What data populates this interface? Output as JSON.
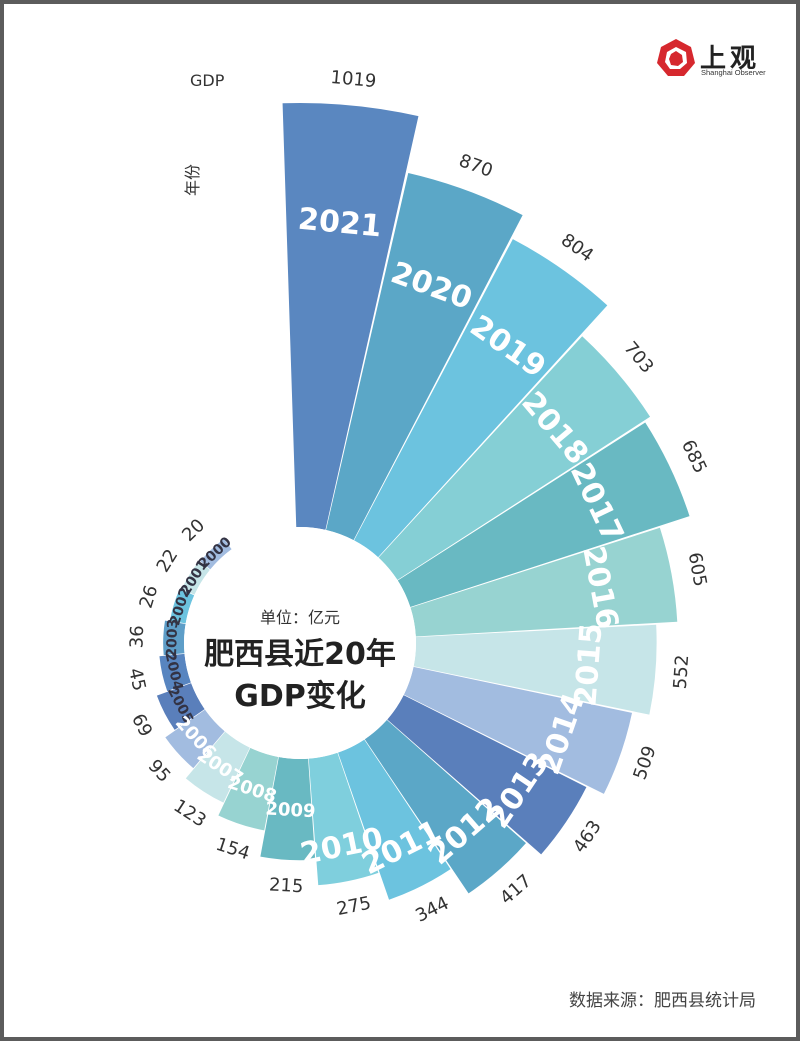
{
  "brand": {
    "name_cn": "上观",
    "name_en": "Shanghai Observer"
  },
  "center": {
    "unit": "单位：亿元",
    "title_line1": "肥西县近20年",
    "title_line2": "GDP变化"
  },
  "source": "数据来源：肥西县统计局",
  "chart_data": {
    "type": "bar",
    "layout": "radial",
    "title": "肥西县近20年GDP变化",
    "unit": "单位：亿元",
    "value_label": "GDP",
    "category_label": "年份",
    "categories": [
      "2000",
      "2001",
      "2002",
      "2003",
      "2004",
      "2005",
      "2006",
      "2007",
      "2008",
      "2009",
      "2010",
      "2011",
      "2012",
      "2013",
      "2014",
      "2015",
      "2016",
      "2017",
      "2018",
      "2019",
      "2020",
      "2021"
    ],
    "values": [
      20,
      22,
      26,
      36,
      45,
      69,
      95,
      123,
      154,
      215,
      275,
      344,
      417,
      463,
      509,
      552,
      605,
      685,
      703,
      804,
      870,
      1019
    ],
    "colors": [
      "#a2bce0",
      "#c6e5e8",
      "#6cc3df",
      "#5e9ec8",
      "#5885c0",
      "#5a7fbb",
      "#a2bce0",
      "#c6e5e8",
      "#97d3d1",
      "#69b9c2",
      "#7fcfdd",
      "#6cc3df",
      "#5ba7c7",
      "#5a7fbb",
      "#a2bce0",
      "#c6e5e8",
      "#97d3d1",
      "#69b9c2",
      "#85cfd5",
      "#6cc3df",
      "#5ba7c7",
      "#5a87c0"
    ],
    "legend": "none",
    "grid": false
  }
}
